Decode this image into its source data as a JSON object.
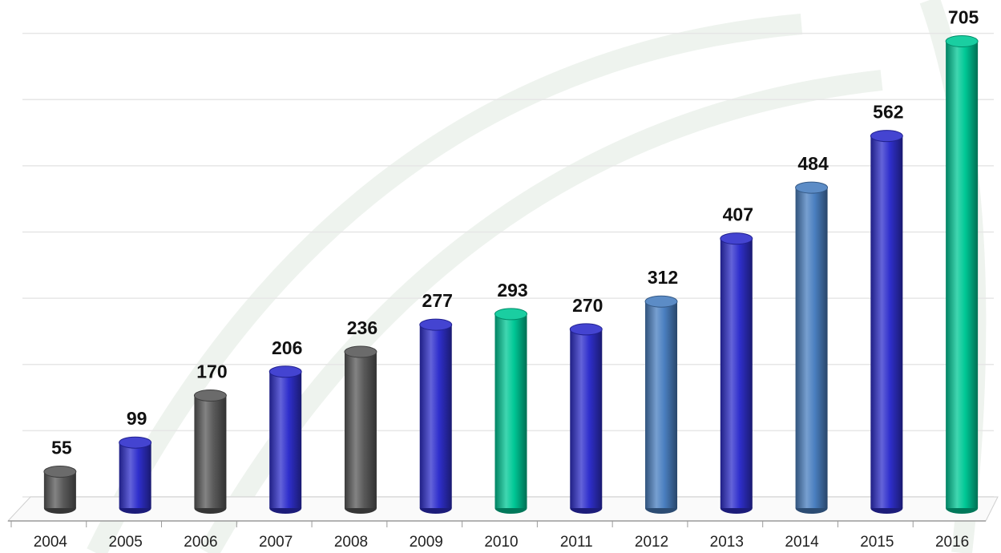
{
  "chart_data": {
    "type": "bar",
    "categories": [
      "2004",
      "2005",
      "2006",
      "2007",
      "2008",
      "2009",
      "2010",
      "2011",
      "2012",
      "2013",
      "2014",
      "2015",
      "2016"
    ],
    "values": [
      55,
      99,
      170,
      206,
      236,
      277,
      293,
      270,
      312,
      407,
      484,
      562,
      705
    ],
    "colors": [
      "#5a5a5a",
      "#2f2fcc",
      "#5a5a5a",
      "#2f2fcc",
      "#5a5a5a",
      "#2f2fcc",
      "#00c896",
      "#2f2fcc",
      "#4a7fc0",
      "#2f2fcc",
      "#4a7fc0",
      "#2f2fcc",
      "#00c896"
    ],
    "ylim": [
      0,
      800
    ],
    "yticks": [
      0,
      100,
      200,
      300,
      400,
      500,
      600,
      700,
      800
    ],
    "grid": true
  }
}
